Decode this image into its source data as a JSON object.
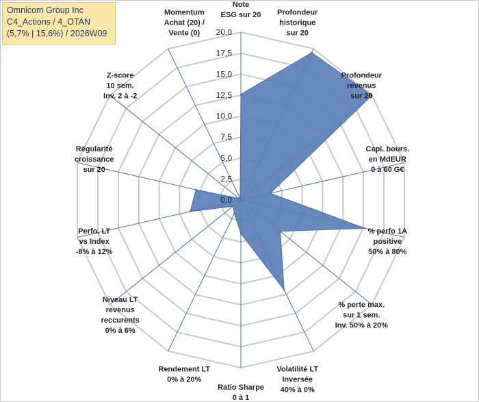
{
  "header": {
    "company": "Omnicom Group Inc",
    "portfolio": "C4_Actions / 4_OTAN",
    "meta": "(5,7% | 15,6%) / 2026W09"
  },
  "chart_data": {
    "type": "radar",
    "title": "",
    "rlim": [
      0,
      20
    ],
    "tick_labels": [
      "0,0",
      "2,5",
      "5,0",
      "7,5",
      "10,0",
      "12,5",
      "15,0",
      "17,5",
      "20,0"
    ],
    "grid": true,
    "colors": {
      "fill": "#5b7fb9",
      "stroke": "#4a6fa8",
      "grid": "#c8c8c8",
      "spoke": "#3f6fbf"
    },
    "axes": [
      {
        "label": [
          "Note",
          "ESG sur 20"
        ],
        "value": 12.6
      },
      {
        "label": [
          "Profondeur",
          "historique",
          "sur 20"
        ],
        "value": 19.5
      },
      {
        "label": [
          "Profondeur",
          "revenus",
          "sur 20"
        ],
        "value": 20.0
      },
      {
        "label": [
          "Capi. bours.",
          "en MdEUR",
          "0 à 60 G€"
        ],
        "value": 3.6
      },
      {
        "label": [
          "% perfo 1A",
          "positive",
          "50% à 80%"
        ],
        "value": 15.2
      },
      {
        "label": [
          "% perte max.",
          "sur 1 sem.",
          "Inv. 50% à 20%"
        ],
        "value": 6.0
      },
      {
        "label": [
          "Volatilité LT",
          "Inversée",
          "40% à 0%"
        ],
        "value": 11.9
      },
      {
        "label": [
          "Ratio Sharpe",
          "0 à 1"
        ],
        "value": 4.0
      },
      {
        "label": [
          "Rendement LT",
          "0% à 20%"
        ],
        "value": 1.8
      },
      {
        "label": [
          "Niveau LT",
          "revenus",
          "reccurents",
          "0% à 6%"
        ],
        "value": 1.2
      },
      {
        "label": [
          "Perfo. LT",
          "vs Index",
          "-8% à 12%"
        ],
        "value": 6.2
      },
      {
        "label": [
          "Régularité",
          "croissance",
          "sur 20"
        ],
        "value": 5.5
      },
      {
        "label": [
          "Z-score",
          "10 sem.",
          "Inv. 2 à -2"
        ],
        "value": 0.3
      },
      {
        "label": [
          "Momentum",
          "Achat (20) /",
          "Vente (0)"
        ],
        "value": 0.2
      }
    ]
  }
}
